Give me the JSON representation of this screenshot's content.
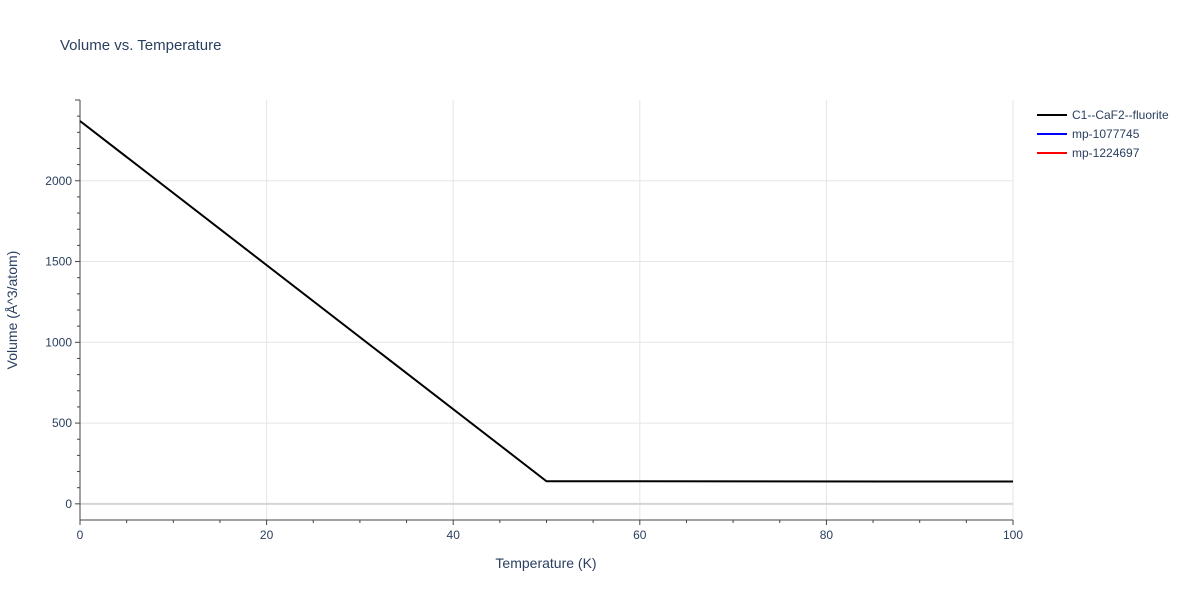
{
  "chart_data": {
    "type": "line",
    "title": "Volume vs. Temperature",
    "xlabel": "Temperature (K)",
    "ylabel": "Volume (Å^3/atom)",
    "xlim": [
      0,
      100
    ],
    "ylim": [
      -100,
      2500
    ],
    "xticks": [
      0,
      20,
      40,
      60,
      80,
      100
    ],
    "yticks": [
      0,
      500,
      1000,
      1500,
      2000
    ],
    "grid": true,
    "legend_position": "top-right",
    "series": [
      {
        "name": "C1--CaF2--fluorite",
        "color": "#000000",
        "x": [
          0,
          50,
          100
        ],
        "y": [
          2370,
          140,
          138
        ]
      },
      {
        "name": "mp-1077745",
        "color": "#0000ff",
        "x": [],
        "y": []
      },
      {
        "name": "mp-1224697",
        "color": "#ff0000",
        "x": [],
        "y": []
      }
    ]
  }
}
